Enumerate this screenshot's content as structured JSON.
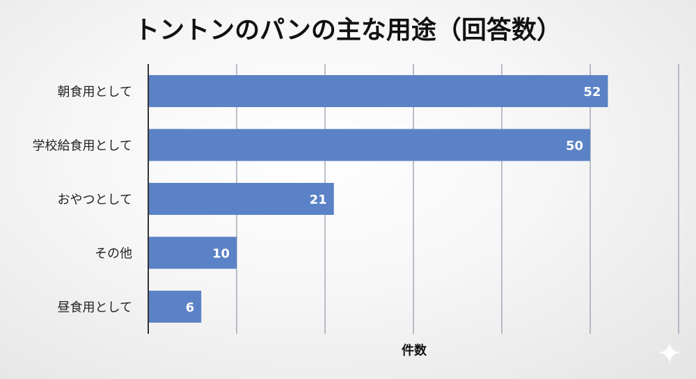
{
  "chart_data": {
    "type": "bar",
    "orientation": "horizontal",
    "title": "トントンのパンの主な用途（回答数）",
    "xlabel": "件数",
    "ylabel": "",
    "categories": [
      "朝食用として",
      "学校給食用として",
      "おやつとして",
      "その他",
      "昼食用として"
    ],
    "values": [
      52,
      50,
      21,
      10,
      6
    ],
    "xlim": [
      0,
      60
    ],
    "grid": true,
    "bar_color": "#5b82c6",
    "data_labels": true
  }
}
